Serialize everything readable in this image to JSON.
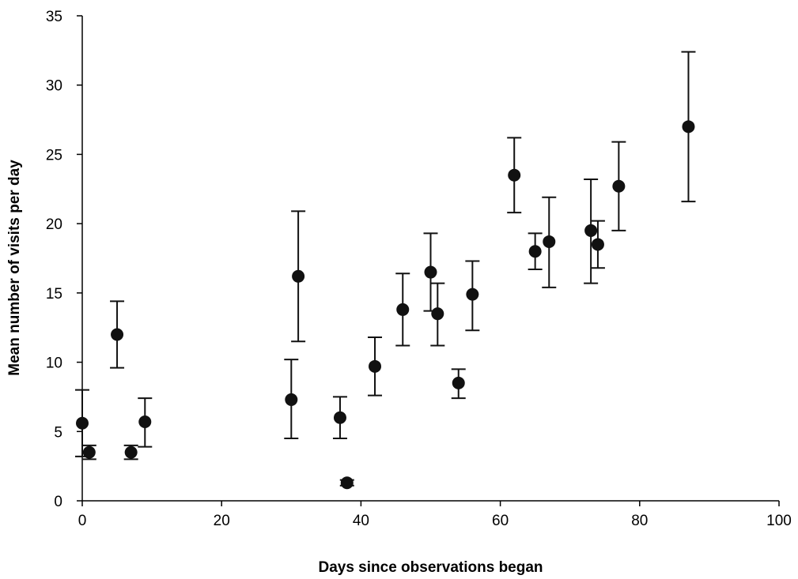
{
  "chart_data": {
    "type": "scatter",
    "xlabel": "Days since observations began",
    "ylabel": "Mean number of visits per day",
    "xlim": [
      0,
      100
    ],
    "ylim": [
      0,
      35
    ],
    "x_ticks": [
      0,
      20,
      40,
      60,
      80,
      100
    ],
    "y_ticks": [
      0,
      5,
      10,
      15,
      20,
      25,
      30,
      35
    ],
    "grid": false,
    "legend": "none",
    "marker_color": "#111111",
    "error_bars": true,
    "series": [
      {
        "points": [
          {
            "x": 0,
            "y": 5.6,
            "lo": 3.2,
            "hi": 8.0
          },
          {
            "x": 1,
            "y": 3.5,
            "lo": 3.0,
            "hi": 4.0
          },
          {
            "x": 5,
            "y": 12.0,
            "lo": 9.6,
            "hi": 14.4
          },
          {
            "x": 7,
            "y": 3.5,
            "lo": 3.0,
            "hi": 4.0
          },
          {
            "x": 9,
            "y": 5.7,
            "lo": 3.9,
            "hi": 7.4
          },
          {
            "x": 30,
            "y": 7.3,
            "lo": 4.5,
            "hi": 10.2
          },
          {
            "x": 31,
            "y": 16.2,
            "lo": 11.5,
            "hi": 20.9
          },
          {
            "x": 37,
            "y": 6.0,
            "lo": 4.5,
            "hi": 7.5
          },
          {
            "x": 38,
            "y": 1.3,
            "lo": 1.1,
            "hi": 1.5
          },
          {
            "x": 42,
            "y": 9.7,
            "lo": 7.6,
            "hi": 11.8
          },
          {
            "x": 46,
            "y": 13.8,
            "lo": 11.2,
            "hi": 16.4
          },
          {
            "x": 50,
            "y": 16.5,
            "lo": 13.7,
            "hi": 19.3
          },
          {
            "x": 51,
            "y": 13.5,
            "lo": 11.2,
            "hi": 15.7
          },
          {
            "x": 54,
            "y": 8.5,
            "lo": 7.4,
            "hi": 9.5
          },
          {
            "x": 56,
            "y": 14.9,
            "lo": 12.3,
            "hi": 17.3
          },
          {
            "x": 62,
            "y": 23.5,
            "lo": 20.8,
            "hi": 26.2
          },
          {
            "x": 65,
            "y": 18.0,
            "lo": 16.7,
            "hi": 19.3
          },
          {
            "x": 67,
            "y": 18.7,
            "lo": 15.4,
            "hi": 21.9
          },
          {
            "x": 73,
            "y": 19.5,
            "lo": 15.7,
            "hi": 23.2
          },
          {
            "x": 74,
            "y": 18.5,
            "lo": 16.8,
            "hi": 20.2
          },
          {
            "x": 77,
            "y": 22.7,
            "lo": 19.5,
            "hi": 25.9
          },
          {
            "x": 87,
            "y": 27.0,
            "lo": 21.6,
            "hi": 32.4
          }
        ]
      }
    ]
  }
}
